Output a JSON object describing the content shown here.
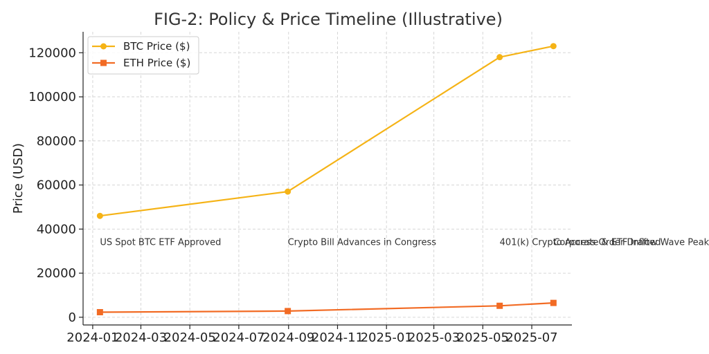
{
  "chart_data": {
    "type": "line",
    "title": "FIG-2: Policy & Price Timeline (Illustrative)",
    "xlabel": "",
    "ylabel": "Price (USD)",
    "ylim": [
      -3500,
      129500
    ],
    "xlim": [
      "2023-12-20",
      "2025-08-20"
    ],
    "y_ticks": [
      0,
      20000,
      40000,
      60000,
      80000,
      100000,
      120000
    ],
    "x_ticks": [
      {
        "date": "2024-01-01",
        "label": "2024-01"
      },
      {
        "date": "2024-03-01",
        "label": "2024-03"
      },
      {
        "date": "2024-05-01",
        "label": "2024-05"
      },
      {
        "date": "2024-07-01",
        "label": "2024-07"
      },
      {
        "date": "2024-09-01",
        "label": "2024-09"
      },
      {
        "date": "2024-11-01",
        "label": "2024-11"
      },
      {
        "date": "2025-01-01",
        "label": "2025-01"
      },
      {
        "date": "2025-03-01",
        "label": "2025-03"
      },
      {
        "date": "2025-05-01",
        "label": "2025-05"
      },
      {
        "date": "2025-07-01",
        "label": "2025-07"
      }
    ],
    "grid": true,
    "legend_position": "top-left",
    "series": [
      {
        "name": "BTC Price ($)",
        "color": "#f5b316",
        "marker": "circle",
        "points": [
          {
            "x": "2024-01-10",
            "y": 46000
          },
          {
            "x": "2024-08-31",
            "y": 57000
          },
          {
            "x": "2025-05-22",
            "y": 118000
          },
          {
            "x": "2025-07-28",
            "y": 123000
          }
        ]
      },
      {
        "name": "ETH Price ($)",
        "color": "#f26b24",
        "marker": "square",
        "points": [
          {
            "x": "2024-01-10",
            "y": 2300
          },
          {
            "x": "2024-08-31",
            "y": 2800
          },
          {
            "x": "2025-05-22",
            "y": 5200
          },
          {
            "x": "2025-07-28",
            "y": 6500
          }
        ]
      }
    ],
    "annotations": [
      {
        "x": "2024-01-10",
        "y": 34000,
        "text": "US Spot BTC ETF Approved"
      },
      {
        "x": "2024-08-31",
        "y": 34000,
        "text": "Crypto Bill Advances in Congress"
      },
      {
        "x": "2025-05-22",
        "y": 34000,
        "text": "401(k) Crypto Access Order Drafted"
      },
      {
        "x": "2025-07-28",
        "y": 34000,
        "text": "Corporate & ETF Inflow Wave Peaks"
      }
    ]
  }
}
